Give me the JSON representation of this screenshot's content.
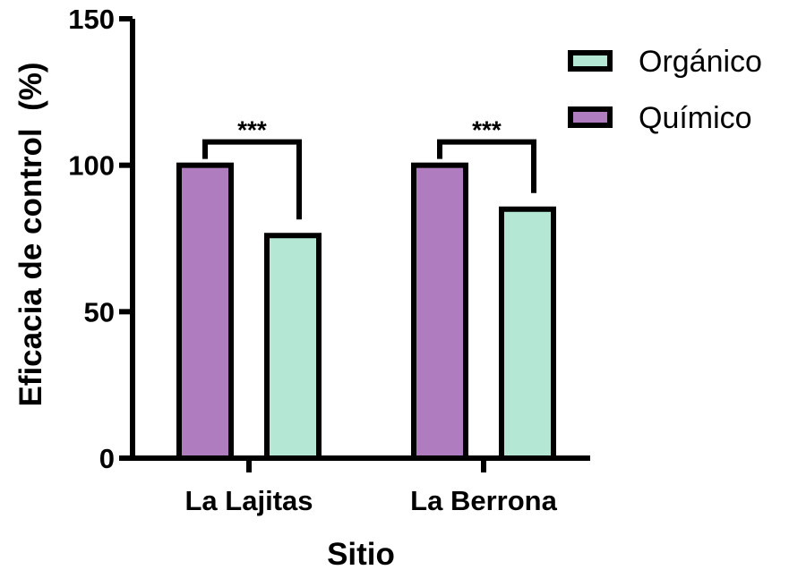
{
  "chart_data": {
    "type": "bar",
    "categories": [
      "La Lajitas",
      "La Berrona"
    ],
    "series": [
      {
        "name": "Químico",
        "values": [
          100,
          100
        ],
        "color": "#B07CC0"
      },
      {
        "name": "Orgánico",
        "values": [
          76,
          85
        ],
        "color": "#B4E8D4"
      }
    ],
    "xlabel": "Sitio",
    "ylabel": "Eficacia de control  (%)",
    "ylim": [
      0,
      150
    ],
    "yticks": [
      0,
      50,
      100,
      150
    ],
    "legend": {
      "position": "top-right",
      "order": [
        "Orgánico",
        "Químico"
      ]
    },
    "annotations": [
      {
        "category": "La Lajitas",
        "text": "***"
      },
      {
        "category": "La Berrona",
        "text": "***"
      }
    ],
    "grid": false
  }
}
